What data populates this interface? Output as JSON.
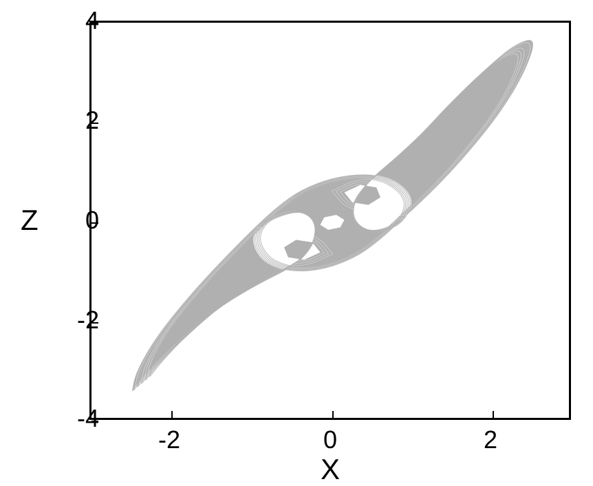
{
  "chart": {
    "type": "line",
    "description": "chaotic attractor phase portrait X-Z plane",
    "xlabel": "X",
    "ylabel": "Z",
    "xlim": [
      -3,
      3
    ],
    "ylim": [
      -4,
      4
    ],
    "xticks": [
      -2,
      0,
      2
    ],
    "yticks": [
      -4,
      -2,
      0,
      2,
      4
    ],
    "xtick_labels": [
      "-2",
      "0",
      "2"
    ],
    "ytick_labels": [
      "-4",
      "-2",
      "0",
      "2",
      "4"
    ],
    "label_fontsize": 42,
    "tick_fontsize": 36,
    "background_color": "#ffffff",
    "border_color": "#000000",
    "border_width": 3,
    "line_color": "#b0b0b0",
    "line_width": 1,
    "attractor_shape": {
      "outer_envelope": [
        [
          -2.5,
          -3.4
        ],
        [
          -2.3,
          -3.0
        ],
        [
          -2.0,
          -2.5
        ],
        [
          -1.5,
          -1.8
        ],
        [
          -1.0,
          -1.3
        ],
        [
          -0.5,
          -0.9
        ],
        [
          -0.3,
          -0.6
        ],
        [
          -0.2,
          -0.2
        ],
        [
          -0.25,
          0.1
        ],
        [
          -0.45,
          0.25
        ],
        [
          -0.7,
          0.15
        ],
        [
          -0.9,
          0.0
        ],
        [
          -1.0,
          -0.3
        ],
        [
          -0.95,
          -0.6
        ],
        [
          -0.8,
          -0.85
        ],
        [
          -0.5,
          -1.0
        ],
        [
          -0.1,
          -0.95
        ],
        [
          0.3,
          -0.7
        ],
        [
          0.6,
          -0.35
        ],
        [
          0.9,
          0.1
        ],
        [
          1.3,
          0.7
        ],
        [
          1.7,
          1.4
        ],
        [
          2.1,
          2.2
        ],
        [
          2.4,
          3.0
        ],
        [
          2.55,
          3.7
        ],
        [
          2.3,
          3.6
        ],
        [
          2.0,
          3.2
        ],
        [
          1.6,
          2.6
        ],
        [
          1.2,
          1.9
        ],
        [
          0.8,
          1.3
        ],
        [
          0.5,
          0.9
        ],
        [
          0.3,
          0.5
        ],
        [
          0.25,
          0.15
        ],
        [
          0.35,
          -0.1
        ],
        [
          0.55,
          -0.2
        ],
        [
          0.8,
          -0.1
        ],
        [
          0.95,
          0.15
        ],
        [
          1.0,
          0.45
        ],
        [
          0.9,
          0.7
        ],
        [
          0.7,
          0.9
        ],
        [
          0.4,
          0.98
        ],
        [
          0.0,
          0.9
        ],
        [
          -0.4,
          0.65
        ],
        [
          -0.7,
          0.3
        ],
        [
          -1.0,
          -0.15
        ],
        [
          -1.4,
          -0.8
        ],
        [
          -1.8,
          -1.5
        ],
        [
          -2.2,
          -2.3
        ],
        [
          -2.45,
          -3.0
        ],
        [
          -2.5,
          -3.4
        ]
      ],
      "center_hole_upper": [
        [
          0.15,
          0.6
        ],
        [
          0.35,
          0.75
        ],
        [
          0.55,
          0.7
        ],
        [
          0.6,
          0.5
        ],
        [
          0.45,
          0.35
        ],
        [
          0.25,
          0.4
        ],
        [
          0.15,
          0.6
        ]
      ],
      "center_hole_lower": [
        [
          -0.15,
          -0.6
        ],
        [
          -0.35,
          -0.75
        ],
        [
          -0.55,
          -0.7
        ],
        [
          -0.6,
          -0.5
        ],
        [
          -0.45,
          -0.35
        ],
        [
          -0.25,
          -0.4
        ],
        [
          -0.15,
          -0.6
        ]
      ],
      "center_slit": [
        [
          0.05,
          0.15
        ],
        [
          0.15,
          0.05
        ],
        [
          0.1,
          -0.1
        ],
        [
          -0.05,
          -0.15
        ],
        [
          -0.15,
          -0.05
        ],
        [
          -0.1,
          0.1
        ],
        [
          0.05,
          0.15
        ]
      ]
    }
  }
}
